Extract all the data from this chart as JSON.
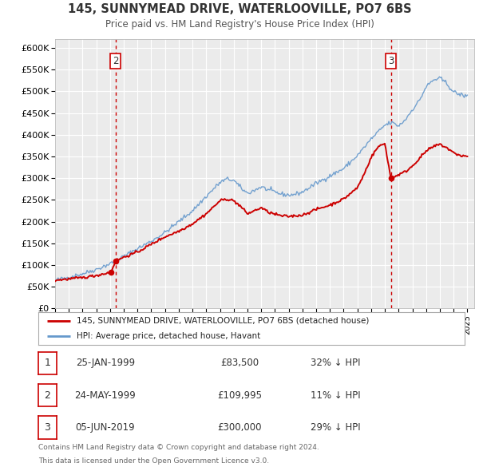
{
  "title": "145, SUNNYMEAD DRIVE, WATERLOOVILLE, PO7 6BS",
  "subtitle": "Price paid vs. HM Land Registry's House Price Index (HPI)",
  "legend_label_red": "145, SUNNYMEAD DRIVE, WATERLOOVILLE, PO7 6BS (detached house)",
  "legend_label_blue": "HPI: Average price, detached house, Havant",
  "background_color": "#ffffff",
  "plot_bg_color": "#ebebeb",
  "grid_color": "#ffffff",
  "red_color": "#cc0000",
  "blue_color": "#6699cc",
  "ylim": [
    0,
    620000
  ],
  "yticks": [
    0,
    50000,
    100000,
    150000,
    200000,
    250000,
    300000,
    350000,
    400000,
    450000,
    500000,
    550000,
    600000
  ],
  "ytick_labels": [
    "£0",
    "£50K",
    "£100K",
    "£150K",
    "£200K",
    "£250K",
    "£300K",
    "£350K",
    "£400K",
    "£450K",
    "£500K",
    "£550K",
    "£600K"
  ],
  "sale_dates": [
    1999.07,
    1999.4,
    2019.43
  ],
  "sale_prices": [
    83500,
    109995,
    300000
  ],
  "sale_labels": [
    "1",
    "2",
    "3"
  ],
  "vline_dates": [
    1999.4,
    2019.43
  ],
  "table_rows": [
    [
      "1",
      "25-JAN-1999",
      "£83,500",
      "32% ↓ HPI"
    ],
    [
      "2",
      "24-MAY-1999",
      "£109,995",
      "11% ↓ HPI"
    ],
    [
      "3",
      "05-JUN-2019",
      "£300,000",
      "29% ↓ HPI"
    ]
  ],
  "footnote_line1": "Contains HM Land Registry data © Crown copyright and database right 2024.",
  "footnote_line2": "This data is licensed under the Open Government Licence v3.0.",
  "xmin": 1995.0,
  "xmax": 2025.5,
  "hpi_key_years": [
    1995,
    1996,
    1997,
    1998,
    1999,
    2000,
    2001,
    2002,
    2003,
    2004,
    2005,
    2006,
    2007,
    2007.5,
    2008,
    2008.5,
    2009,
    2009.5,
    2010,
    2010.5,
    2011,
    2011.5,
    2012,
    2012.5,
    2013,
    2013.5,
    2014,
    2015,
    2016,
    2017,
    2018,
    2019,
    2019.5,
    2020,
    2020.5,
    2021,
    2021.5,
    2022,
    2022.5,
    2023,
    2023.5,
    2024,
    2024.5,
    2025
  ],
  "hpi_key_vals": [
    65000,
    72000,
    80000,
    90000,
    103000,
    120000,
    138000,
    155000,
    175000,
    200000,
    225000,
    258000,
    290000,
    298000,
    295000,
    278000,
    265000,
    272000,
    280000,
    273000,
    268000,
    263000,
    261000,
    263000,
    268000,
    278000,
    288000,
    305000,
    322000,
    352000,
    390000,
    422000,
    428000,
    420000,
    435000,
    458000,
    478000,
    510000,
    525000,
    530000,
    518000,
    498000,
    492000,
    488000
  ],
  "red_key_years": [
    1995,
    1996,
    1997,
    1998,
    1999.07,
    1999.4,
    2000,
    2001,
    2002,
    2003,
    2004,
    2005,
    2006,
    2007,
    2007.5,
    2008,
    2008.5,
    2009,
    2009.5,
    2010,
    2010.5,
    2011,
    2011.5,
    2012,
    2013,
    2014,
    2015,
    2016,
    2017,
    2017.5,
    2018,
    2018.5,
    2019.0,
    2019.43,
    2020,
    2020.5,
    2021,
    2021.5,
    2022,
    2022.5,
    2023,
    2023.5,
    2024,
    2024.5,
    2025
  ],
  "red_key_vals": [
    65000,
    68000,
    71000,
    76000,
    83500,
    109995,
    118000,
    130000,
    148000,
    165000,
    178000,
    195000,
    218000,
    248000,
    252000,
    248000,
    235000,
    218000,
    225000,
    232000,
    222000,
    217000,
    213000,
    212000,
    215000,
    228000,
    238000,
    252000,
    278000,
    310000,
    348000,
    372000,
    380000,
    300000,
    308000,
    315000,
    328000,
    345000,
    362000,
    372000,
    378000,
    370000,
    358000,
    352000,
    350000
  ]
}
